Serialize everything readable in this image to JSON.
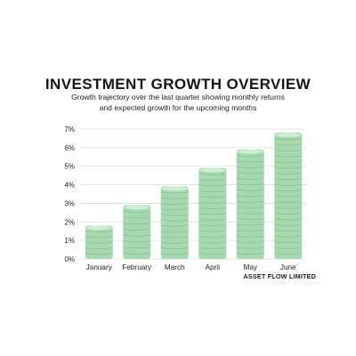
{
  "header": {
    "title": "INVESTMENT GROWTH OVERVIEW",
    "subtitle_line1": "Growth trajectory over the last quarter showing monthly returns",
    "subtitle_line2": "and expected growth for the upcoming months"
  },
  "footer": {
    "brand": "ASSET FLOW LIMITED"
  },
  "colors": {
    "coin_fill": "#a8d8b0",
    "coin_edge": "#7fbf8c",
    "coin_top": "#cdeed2",
    "grid": "#dddddd",
    "text": "#222222"
  },
  "chart_data": {
    "type": "bar",
    "title": "INVESTMENT GROWTH OVERVIEW",
    "categories": [
      "January",
      "February",
      "March",
      "April",
      "May",
      "June"
    ],
    "values": [
      1.8,
      2.9,
      3.9,
      4.9,
      5.9,
      6.8
    ],
    "ylim": [
      0,
      7
    ],
    "yticks": [
      "0%",
      "1%",
      "2%",
      "3%",
      "4%",
      "5%",
      "6%",
      "7%"
    ],
    "grid": true,
    "style": "stacked-coins"
  }
}
